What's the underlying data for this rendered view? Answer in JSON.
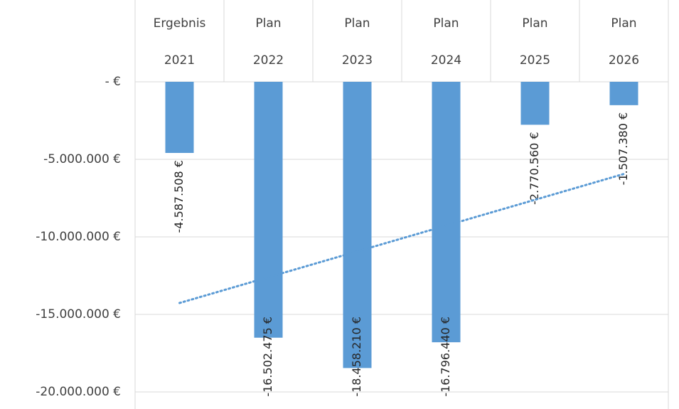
{
  "chart_data": {
    "type": "bar",
    "categories": [
      [
        "Ergebnis",
        "2021"
      ],
      [
        "Plan",
        "2022"
      ],
      [
        "Plan",
        "2023"
      ],
      [
        "Plan",
        "2024"
      ],
      [
        "Plan",
        "2025"
      ],
      [
        "Plan",
        "2026"
      ]
    ],
    "values": [
      -4587508,
      -16502475,
      -18458210,
      -16796440,
      -2770560,
      -1507380
    ],
    "value_labels": [
      "-4.587.508 €",
      "-16.502.475 €",
      "-18.458.210 €",
      "-16.796.440 €",
      "-2.770.560 €",
      "-1.507.380 €"
    ],
    "color": "#5b9bd5",
    "ylim": [
      -20000000,
      0
    ],
    "yticks": [
      {
        "value": 0,
        "label": "-  €"
      },
      {
        "value": -5000000,
        "label": "-5.000.000 €"
      },
      {
        "value": -10000000,
        "label": "-10.000.000 €"
      },
      {
        "value": -15000000,
        "label": "-15.000.000 €"
      },
      {
        "value": -20000000,
        "label": "-20.000.000 €"
      }
    ],
    "grid": true,
    "trendline": {
      "type": "linear",
      "style": "dotted",
      "color": "#5b9bd5"
    }
  }
}
